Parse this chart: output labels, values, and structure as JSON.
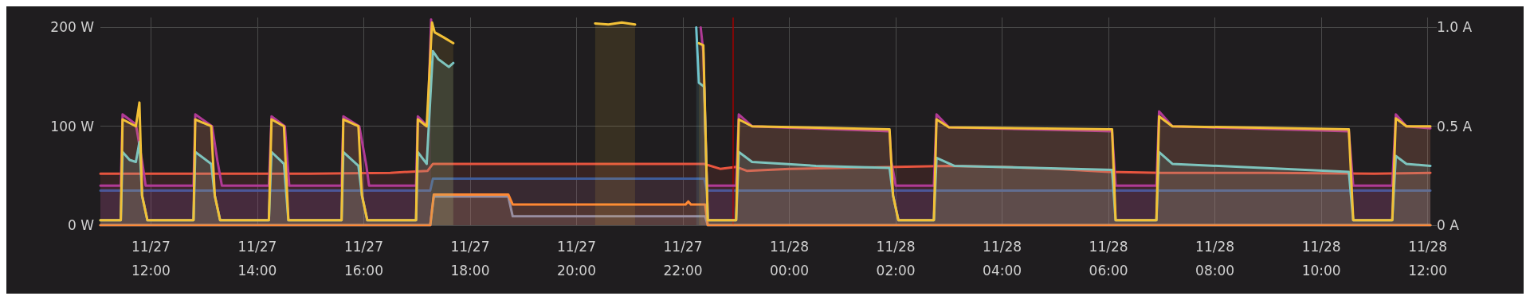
{
  "chart_data": {
    "type": "area",
    "grid": true,
    "marker": "none",
    "line_style": "solid",
    "xlim": [
      "--11-27T11:03",
      "--11-28T12:03"
    ],
    "xticks": [
      {
        "value": "--11-27T12:00",
        "label": "11/27\n12:00"
      },
      {
        "value": "--11-27T14:00",
        "label": "11/27\n14:00"
      },
      {
        "value": "--11-27T16:00",
        "label": "11/27\n16:00"
      },
      {
        "value": "--11-27T18:00",
        "label": "11/27\n18:00"
      },
      {
        "value": "--11-27T20:00",
        "label": "11/27\n20:00"
      },
      {
        "value": "--11-27T22:00",
        "label": "11/27\n22:00"
      },
      {
        "value": "--11-28T00:00",
        "label": "11/28\n00:00"
      },
      {
        "value": "--11-28T02:00",
        "label": "11/28\n02:00"
      },
      {
        "value": "--11-28T04:00",
        "label": "11/28\n04:00"
      },
      {
        "value": "--11-28T06:00",
        "label": "11/28\n06:00"
      },
      {
        "value": "--11-28T08:00",
        "label": "11/28\n08:00"
      },
      {
        "value": "--11-28T10:00",
        "label": "11/28\n10:00"
      },
      {
        "value": "--11-28T12:00",
        "label": "11/28\n12:00"
      }
    ],
    "ylim": [
      0,
      210
    ],
    "yticks": [
      {
        "value": 0,
        "label": "0 W"
      },
      {
        "value": 100,
        "label": "100 W"
      },
      {
        "value": 200,
        "label": "200 W"
      }
    ],
    "y2lim": [
      0,
      1.05
    ],
    "y2ticks": [
      {
        "value": 0,
        "label": "0 A"
      },
      {
        "value": 0.5,
        "label": "0.5 A"
      },
      {
        "value": 1,
        "label": "1.0 A"
      }
    ],
    "ref_lines": [
      {
        "axis": "x",
        "value": "--11-27T22:56",
        "color": "#a00000"
      }
    ],
    "series": [
      {
        "color": "#e8553f",
        "x": [
          "--11-27T11:03",
          "--11-27T13:00",
          "--11-27T15:00",
          "--11-27T16:30",
          "--11-27T17:12",
          "--11-27T17:18",
          "--11-27T20:00",
          "--11-27T22:24",
          "--11-27T22:42",
          "--11-27T23:00",
          "--11-27T23:12",
          "--11-28T00:00",
          "--11-28T01:00",
          "--11-28T02:00",
          "--11-28T03:00",
          "--11-28T04:00",
          "--11-28T05:00",
          "--11-28T06:00",
          "--11-28T07:00",
          "--11-28T09:00",
          "--11-28T11:00",
          "--11-28T12:03"
        ],
        "values": [
          52,
          52,
          52,
          53,
          55,
          62,
          62,
          62,
          57,
          59,
          55,
          57,
          58,
          59,
          60,
          59,
          57,
          54,
          53,
          53,
          52,
          53
        ]
      },
      {
        "color": "#3f5c9a",
        "x": [
          "--11-27T11:03",
          "--11-27T17:15",
          "--11-27T17:18",
          "--11-27T22:24",
          "--11-27T22:27",
          "--11-28T12:03"
        ],
        "values": [
          35,
          35,
          47,
          47,
          35,
          35
        ]
      },
      {
        "color": "#8a8fb0",
        "x": [
          "--11-27T11:03",
          "--11-27T17:15",
          "--11-27T17:19",
          "--11-27T18:43",
          "--11-27T18:48",
          "--11-27T22:25",
          "--11-27T22:28",
          "--11-28T12:03"
        ],
        "values": [
          0,
          0,
          29,
          29,
          9,
          9,
          0,
          0
        ]
      },
      {
        "color": "#ff8833",
        "x": [
          "--11-27T11:03",
          "--11-27T17:15",
          "--11-27T17:19",
          "--11-27T18:43",
          "--11-27T18:48",
          "--11-27T22:03",
          "--11-27T22:06",
          "--11-27T22:09",
          "--11-27T22:25",
          "--11-27T22:28",
          "--11-28T12:03"
        ],
        "values": [
          0,
          0,
          31,
          31,
          21,
          21,
          24,
          21,
          21,
          0,
          0
        ]
      },
      {
        "color": "#b03a96",
        "x": [
          "--11-27T11:03",
          "--11-27T11:26",
          "--11-27T11:28",
          "--11-27T11:43",
          "--11-27T11:50",
          "--11-27T11:54",
          "--11-27T12:48",
          "--11-27T12:50",
          "--11-27T13:09",
          "--11-27T13:15",
          "--11-27T13:20",
          "--11-27T14:13",
          "--11-27T14:16",
          "--11-27T14:31",
          "--11-27T14:36",
          "--11-27T15:35",
          "--11-27T15:37",
          "--11-27T15:55",
          "--11-27T16:03",
          "--11-27T16:06",
          "--11-27T16:59",
          "--11-27T17:01",
          "--11-27T17:12",
          "--11-27T17:16",
          "--11-27T17:17",
          "--11-27T22:20",
          "--11-27T22:23",
          "--11-27T22:27",
          "--11-27T23:00",
          "--11-27T23:03",
          "--11-27T23:18",
          "--11-28T01:53",
          "--11-28T01:55",
          "--11-28T02:00",
          "--11-28T02:43",
          "--11-28T02:46",
          "--11-28T03:00",
          "--11-28T06:04",
          "--11-28T06:08",
          "--11-28T06:54",
          "--11-28T06:57",
          "--11-28T07:12",
          "--11-28T10:31",
          "--11-28T10:36",
          "--11-28T11:20",
          "--11-28T11:24",
          "--11-28T11:36",
          "--11-28T12:03"
        ],
        "values": [
          40,
          40,
          112,
          102,
          65,
          40,
          40,
          112,
          100,
          65,
          40,
          40,
          110,
          100,
          40,
          40,
          110,
          100,
          60,
          40,
          40,
          110,
          100,
          208,
          null,
          200,
          175,
          40,
          40,
          112,
          100,
          95,
          65,
          40,
          40,
          112,
          99,
          95,
          40,
          40,
          115,
          100,
          95,
          40,
          40,
          112,
          100,
          98
        ]
      },
      {
        "color": "#6fc5d0",
        "axis": "y2",
        "x": [
          "--11-27T11:03",
          "--11-27T11:26",
          "--11-27T11:28",
          "--11-27T11:36",
          "--11-27T11:43",
          "--11-27T11:47",
          "--11-27T11:50",
          "--11-27T11:56",
          "--11-27T12:48",
          "--11-27T12:50",
          "--11-27T13:08",
          "--11-27T13:12",
          "--11-27T13:18",
          "--11-27T14:13",
          "--11-27T14:16",
          "--11-27T14:30",
          "--11-27T14:35",
          "--11-27T15:35",
          "--11-27T15:37",
          "--11-27T15:54",
          "--11-27T15:58",
          "--11-27T16:04",
          "--11-27T16:59",
          "--11-27T17:01",
          "--11-27T17:11",
          "--11-27T17:18",
          "--11-27T17:24",
          "--11-27T17:36",
          "--11-27T17:41",
          "--11-27T17:43",
          "--11-27T22:15",
          "--11-27T22:18",
          "--11-27T22:24",
          "--11-27T22:28",
          "--11-27T23:00",
          "--11-27T23:03",
          "--11-27T23:18",
          "--11-28T00:30",
          "--11-28T01:53",
          "--11-28T01:57",
          "--11-28T02:03",
          "--11-28T02:43",
          "--11-28T02:46",
          "--11-28T03:06",
          "--11-28T06:04",
          "--11-28T06:08",
          "--11-28T06:54",
          "--11-28T06:57",
          "--11-28T07:12",
          "--11-28T10:31",
          "--11-28T10:36",
          "--11-28T11:20",
          "--11-28T11:24",
          "--11-28T11:36",
          "--11-28T12:03"
        ],
        "values": [
          0.025,
          0.025,
          0.37,
          0.33,
          0.32,
          0.42,
          0.15,
          0.025,
          0.025,
          0.37,
          0.31,
          0.15,
          0.025,
          0.025,
          0.37,
          0.31,
          0.025,
          0.025,
          0.37,
          0.3,
          0.15,
          0.025,
          0.025,
          0.37,
          0.31,
          0.88,
          0.84,
          0.8,
          0.82,
          null,
          1.0,
          0.72,
          0.7,
          0.025,
          0.025,
          0.37,
          0.32,
          0.3,
          0.29,
          0.15,
          0.025,
          0.025,
          0.34,
          0.3,
          0.28,
          0.025,
          0.025,
          0.37,
          0.31,
          0.27,
          0.025,
          0.025,
          0.35,
          0.31,
          0.3
        ]
      },
      {
        "color": "#f2c037",
        "x": [
          "--11-27T11:03",
          "--11-27T11:26",
          "--11-27T11:28",
          "--11-27T11:43",
          "--11-27T11:47",
          "--11-27T11:50",
          "--11-27T11:56",
          "--11-27T12:48",
          "--11-27T12:50",
          "--11-27T13:08",
          "--11-27T13:12",
          "--11-27T13:18",
          "--11-27T14:13",
          "--11-27T14:16",
          "--11-27T14:30",
          "--11-27T14:35",
          "--11-27T15:35",
          "--11-27T15:37",
          "--11-27T15:54",
          "--11-27T15:58",
          "--11-27T16:04",
          "--11-27T16:59",
          "--11-27T17:01",
          "--11-27T17:11",
          "--11-27T17:17",
          "--11-27T17:20",
          "--11-27T17:30",
          "--11-27T17:41",
          "--11-27T17:42",
          "--11-27T20:21",
          "--11-27T20:36",
          "--11-27T20:51",
          "--11-27T21:06",
          "--11-27T21:09",
          "--11-27T22:18",
          "--11-27T22:23",
          "--11-27T22:28",
          "--11-27T23:00",
          "--11-27T23:03",
          "--11-27T23:18",
          "--11-28T01:53",
          "--11-28T01:57",
          "--11-28T02:03",
          "--11-28T02:43",
          "--11-28T02:46",
          "--11-28T03:00",
          "--11-28T06:04",
          "--11-28T06:08",
          "--11-28T06:54",
          "--11-28T06:57",
          "--11-28T07:12",
          "--11-28T10:31",
          "--11-28T10:36",
          "--11-28T11:20",
          "--11-28T11:24",
          "--11-28T11:36",
          "--11-28T12:03"
        ],
        "values": [
          5,
          5,
          107,
          100,
          124,
          30,
          5,
          5,
          107,
          100,
          30,
          5,
          5,
          107,
          100,
          5,
          5,
          107,
          100,
          30,
          5,
          5,
          107,
          100,
          205,
          195,
          190,
          184,
          null,
          204,
          203,
          205,
          203,
          null,
          184,
          182,
          5,
          5,
          107,
          100,
          97,
          30,
          5,
          5,
          107,
          99,
          97,
          5,
          5,
          110,
          100,
          97,
          5,
          5,
          108,
          100,
          100
        ]
      }
    ]
  }
}
